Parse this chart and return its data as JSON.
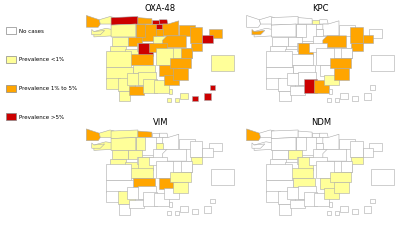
{
  "panels": [
    "OXA-48",
    "KPC",
    "VIM",
    "NDM"
  ],
  "legend_labels": [
    "No cases",
    "Prevalence <1%",
    "Prevalence 1% to 5%",
    "Prevalence >5%"
  ],
  "legend_colors": [
    "#FFFFFF",
    "#FFFF99",
    "#FFA500",
    "#CC0000"
  ],
  "OXA48_colors": {
    "ES-C": "#FFA500",
    "ES-LU": "#FFFF99",
    "ES-OR": "#FFFF99",
    "ES-PO": "#FFFF99",
    "ES-O": "#CC0000",
    "ES-S": "#FFA500",
    "ES-BI": "#CC0000",
    "ES-SS": "#CC0000",
    "ES-VI": "#CC0000",
    "ES-NA": "#FFA500",
    "ES-LO": "#FFA500",
    "ES-LE": "#FFFF99",
    "ES-BU": "#FFA500",
    "ES-P": "#FFA500",
    "ES-VA": "#FFA500",
    "ES-ZA": "#FFFF99",
    "ES-SA": "#FFFF99",
    "ES-AV": "#FFFF99",
    "ES-SG": "#FFFF99",
    "ES-SO": "#FFFF99",
    "ES-HU": "#FFA500",
    "ES-Z": "#FFA500",
    "ES-TE": "#FFFF99",
    "ES-L": "#FFA500",
    "ES-GI": "#FFA500",
    "ES-B": "#CC0000",
    "ES-T": "#FFA500",
    "ES-M": "#CC0000",
    "ES-TO": "#FFA500",
    "ES-CR": "#FFFF99",
    "ES-CU": "#FFFF99",
    "ES-GU": "#FFA500",
    "ES-AB": "#FFA500",
    "ES-CC": "#FFFF99",
    "ES-BA": "#FFFF99",
    "ES-H": "#FFFF99",
    "ES-SE": "#FFFF99",
    "ES-CA": "#FFFF99",
    "ES-MA": "#FFA500",
    "ES-GR": "#FFFF99",
    "ES-AL": "#FFFF99",
    "ES-J": "#FFFF99",
    "ES-CO": "#FFFF99",
    "ES-MU": "#FFA500",
    "ES-V": "#FFA500",
    "ES-CS": "#FFA500",
    "ES-A": "#FFA500",
    "ES-PM": "#FFFF99",
    "ES-GC": "#CC0000",
    "ES-TF": "#FFFF99",
    "ES-CE": "#FFFFFF",
    "ES-ML": "#FFFFFF"
  },
  "KPC_colors": {
    "ES-C": "#FFFFFF",
    "ES-LU": "#FFFFFF",
    "ES-OR": "#FFFFFF",
    "ES-PO": "#FFA500",
    "ES-O": "#FFFFFF",
    "ES-S": "#FFFFFF",
    "ES-BI": "#FFFF99",
    "ES-SS": "#FFFFFF",
    "ES-VI": "#FFFFFF",
    "ES-NA": "#FFFFFF",
    "ES-LO": "#FFFFFF",
    "ES-LE": "#FFFFFF",
    "ES-BU": "#FFFFFF",
    "ES-P": "#FFFFFF",
    "ES-VA": "#FFFFFF",
    "ES-ZA": "#FFFFFF",
    "ES-SA": "#FFFFFF",
    "ES-AV": "#FFFFFF",
    "ES-SG": "#FFFFFF",
    "ES-SO": "#FFFFFF",
    "ES-HU": "#FFFFFF",
    "ES-Z": "#FFA500",
    "ES-TE": "#FFFFFF",
    "ES-L": "#FFA500",
    "ES-GI": "#FFFFFF",
    "ES-B": "#FFA500",
    "ES-T": "#FFA500",
    "ES-M": "#FFA500",
    "ES-TO": "#FFFFFF",
    "ES-CR": "#FFFFFF",
    "ES-CU": "#FFFFFF",
    "ES-GU": "#FFFFFF",
    "ES-AB": "#FFFFFF",
    "ES-CC": "#FFFFFF",
    "ES-BA": "#FFFFFF",
    "ES-H": "#FFFFFF",
    "ES-SE": "#FFFFFF",
    "ES-CA": "#FFFFFF",
    "ES-MA": "#FFFFFF",
    "ES-GR": "#CC0000",
    "ES-AL": "#FFA500",
    "ES-J": "#FFFFFF",
    "ES-CO": "#FFFFFF",
    "ES-MU": "#FFFF99",
    "ES-V": "#FFA500",
    "ES-CS": "#FFFFFF",
    "ES-A": "#FFA500",
    "ES-PM": "#FFFFFF",
    "ES-GC": "#FFFFFF",
    "ES-TF": "#FFFFFF",
    "ES-CE": "#FFFFFF",
    "ES-ML": "#FFFFFF"
  },
  "VIM_colors": {
    "ES-C": "#FFA500",
    "ES-LU": "#FFFF99",
    "ES-OR": "#FFFF99",
    "ES-PO": "#FFFF99",
    "ES-O": "#FFFF99",
    "ES-S": "#FFA500",
    "ES-BI": "#FFFFFF",
    "ES-SS": "#FFFFFF",
    "ES-VI": "#FFFFFF",
    "ES-NA": "#FFFFFF",
    "ES-LO": "#FFFF99",
    "ES-LE": "#FFFF99",
    "ES-BU": "#FFFFFF",
    "ES-P": "#FFFF99",
    "ES-VA": "#FFFF99",
    "ES-ZA": "#FFFF99",
    "ES-SA": "#FFFF99",
    "ES-AV": "#FFFF99",
    "ES-SG": "#FFFFFF",
    "ES-SO": "#FFFFFF",
    "ES-HU": "#FFFFFF",
    "ES-Z": "#FFFFFF",
    "ES-TE": "#FFFFFF",
    "ES-L": "#FFFFFF",
    "ES-GI": "#FFFFFF",
    "ES-B": "#FFFFFF",
    "ES-T": "#FFFF99",
    "ES-M": "#FFFF99",
    "ES-TO": "#FFFF99",
    "ES-CR": "#FFA500",
    "ES-CU": "#FFFFFF",
    "ES-GU": "#FFFFFF",
    "ES-AB": "#FFA500",
    "ES-CC": "#FFFFFF",
    "ES-BA": "#FFFFFF",
    "ES-H": "#FFFFFF",
    "ES-SE": "#FFFF99",
    "ES-CA": "#FFFFFF",
    "ES-MA": "#FFFFFF",
    "ES-GR": "#FFFFFF",
    "ES-AL": "#FFFFFF",
    "ES-J": "#FFFFFF",
    "ES-CO": "#FFFFFF",
    "ES-MU": "#FFFFFF",
    "ES-V": "#FFFF99",
    "ES-CS": "#FFFFFF",
    "ES-A": "#FFFF99",
    "ES-PM": "#FFFFFF",
    "ES-GC": "#FFFFFF",
    "ES-TF": "#FFFFFF",
    "ES-CE": "#FFFFFF",
    "ES-ML": "#FFFFFF"
  },
  "NDM_colors": {
    "ES-C": "#FFA500",
    "ES-LU": "#FFFFFF",
    "ES-OR": "#FFFFFF",
    "ES-PO": "#FFFFFF",
    "ES-O": "#FFFFFF",
    "ES-S": "#FFFFFF",
    "ES-BI": "#FFFFFF",
    "ES-SS": "#FFFFFF",
    "ES-VI": "#FFFFFF",
    "ES-NA": "#FFFFFF",
    "ES-LO": "#FFFFFF",
    "ES-LE": "#FFFFFF",
    "ES-BU": "#FFFFFF",
    "ES-P": "#FFFFFF",
    "ES-VA": "#FFFF99",
    "ES-ZA": "#FFFFFF",
    "ES-SA": "#FFFFFF",
    "ES-AV": "#FFFFFF",
    "ES-SG": "#FFFFFF",
    "ES-SO": "#FFFFFF",
    "ES-HU": "#FFFFFF",
    "ES-Z": "#FFFFFF",
    "ES-TE": "#FFFFFF",
    "ES-L": "#FFFFFF",
    "ES-GI": "#FFFFFF",
    "ES-B": "#FFFFFF",
    "ES-T": "#FFFF99",
    "ES-M": "#FFFF99",
    "ES-TO": "#FFFF99",
    "ES-CR": "#FFFF99",
    "ES-CU": "#FFFFFF",
    "ES-GU": "#FFFFFF",
    "ES-AB": "#FFFF99",
    "ES-CC": "#FFFFFF",
    "ES-BA": "#FFFFFF",
    "ES-H": "#FFFFFF",
    "ES-SE": "#FFFFFF",
    "ES-CA": "#FFFFFF",
    "ES-MA": "#FFFFFF",
    "ES-GR": "#FFFFFF",
    "ES-AL": "#FFFFFF",
    "ES-J": "#FFFFFF",
    "ES-CO": "#FFFFFF",
    "ES-MU": "#FFFF99",
    "ES-V": "#FFFF99",
    "ES-CS": "#FFFFFF",
    "ES-A": "#FFFF99",
    "ES-PM": "#FFFFFF",
    "ES-GC": "#FFFFFF",
    "ES-TF": "#FFFFFF",
    "ES-CE": "#FFFFFF",
    "ES-ML": "#FFFFFF"
  }
}
